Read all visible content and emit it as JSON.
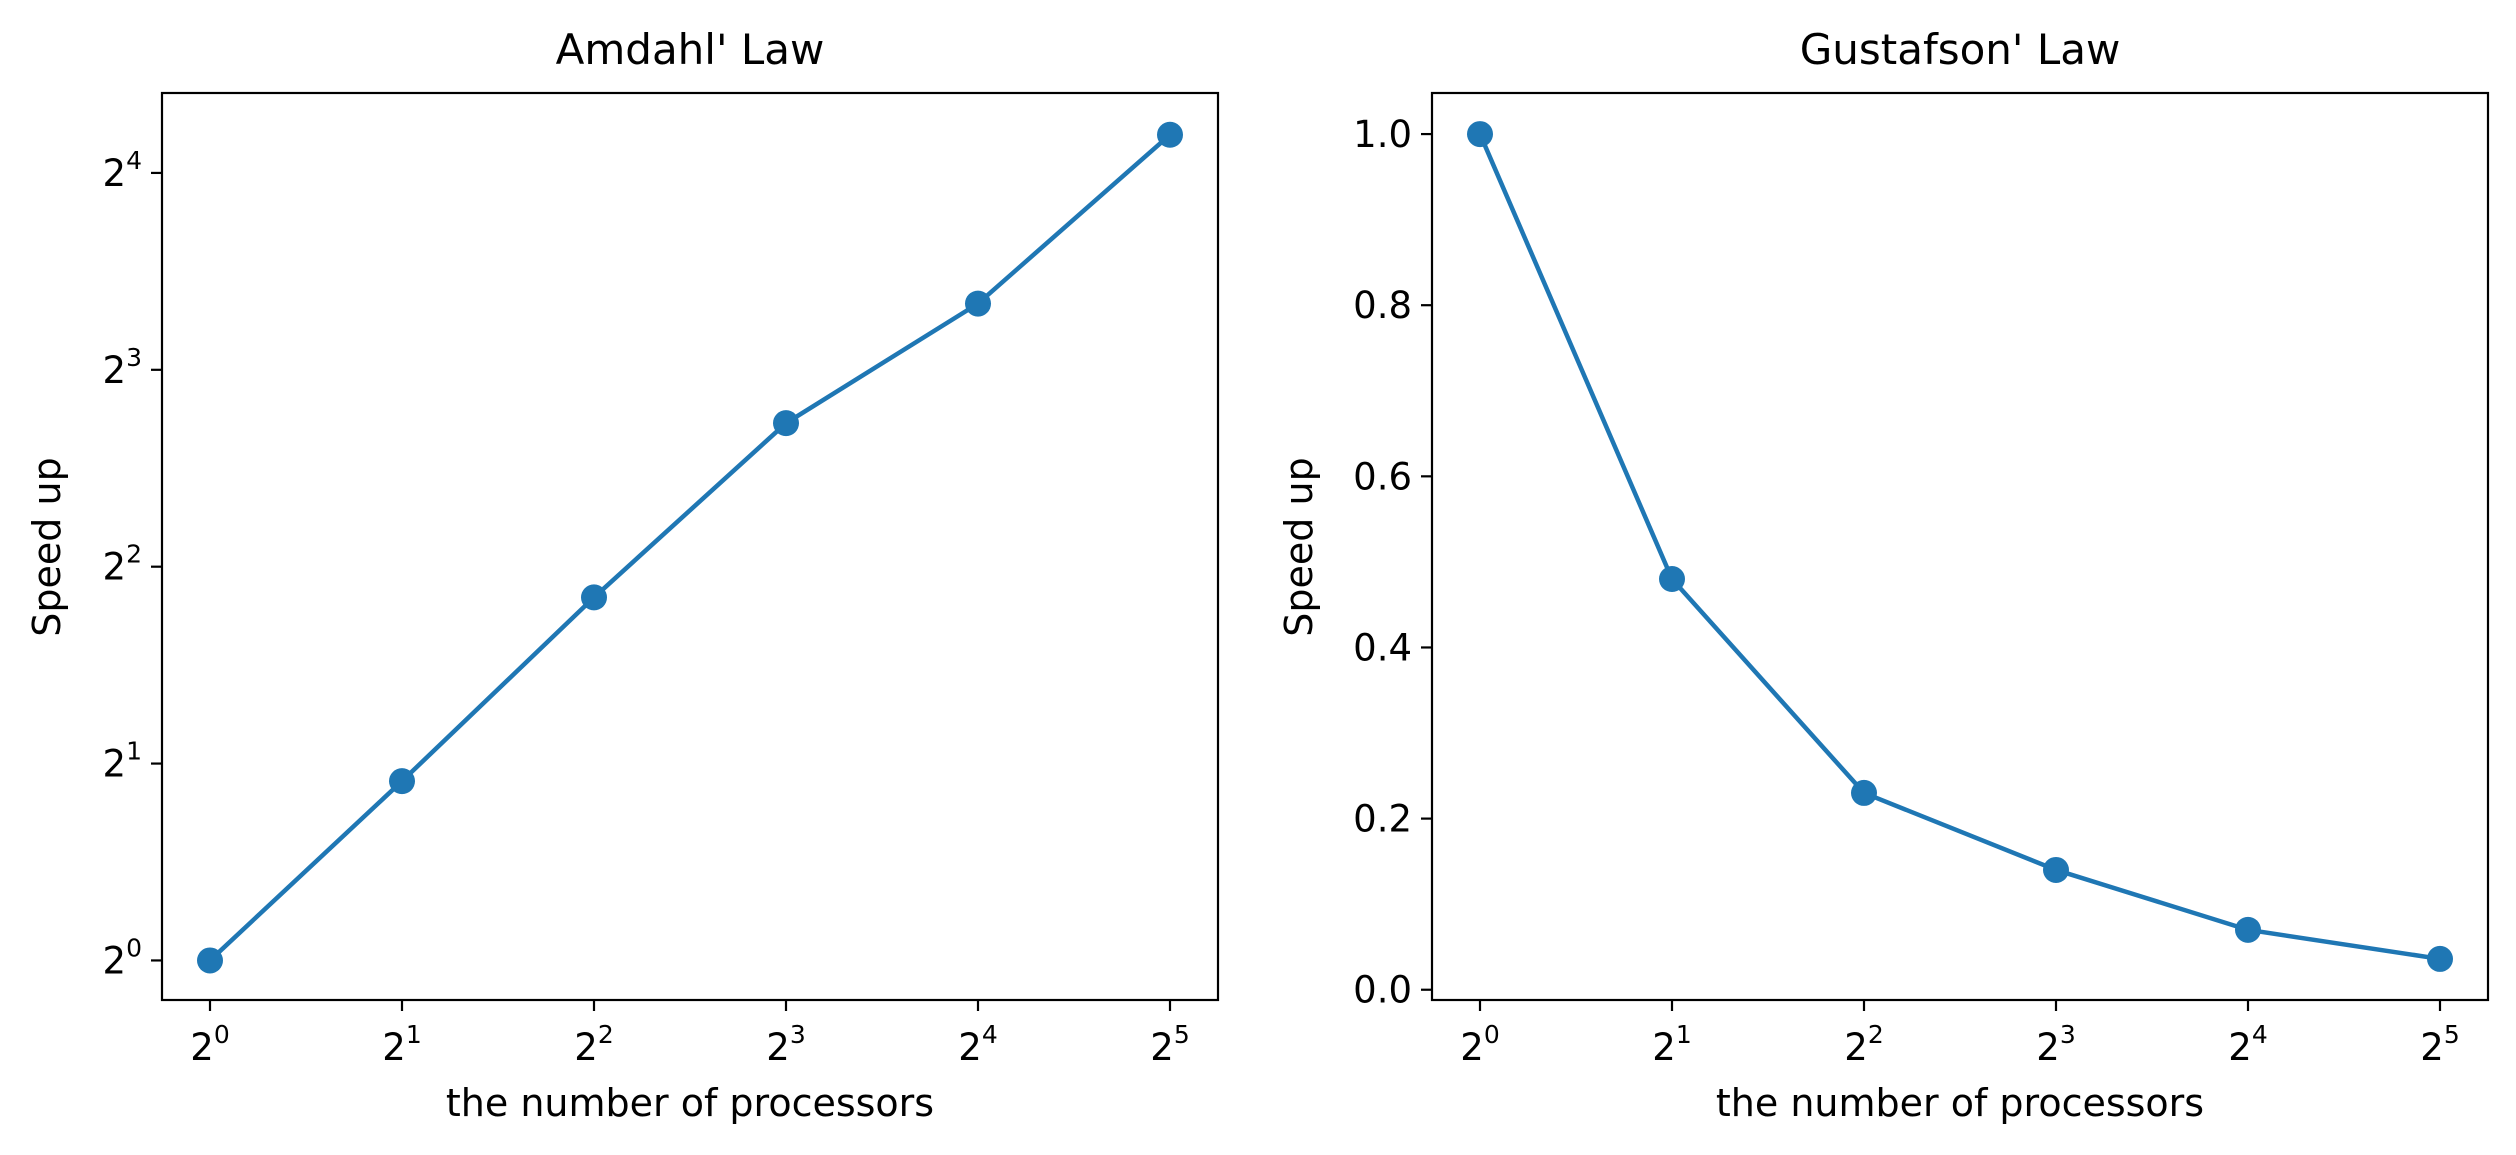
{
  "chart_data": [
    {
      "type": "line",
      "title": "Amdahl' Law",
      "xlabel": "the number of processors",
      "ylabel": "Speed up",
      "xscale": "log2",
      "yscale": "log2",
      "x": [
        1,
        2,
        4,
        8,
        16,
        32
      ],
      "x_tick_labels": [
        {
          "base": "2",
          "exp": "0"
        },
        {
          "base": "2",
          "exp": "1"
        },
        {
          "base": "2",
          "exp": "2"
        },
        {
          "base": "2",
          "exp": "3"
        },
        {
          "base": "2",
          "exp": "4"
        },
        {
          "base": "2",
          "exp": "5"
        }
      ],
      "y_ticks": [
        1,
        2,
        4,
        8,
        16
      ],
      "y_tick_labels": [
        {
          "base": "2",
          "exp": "0"
        },
        {
          "base": "2",
          "exp": "1"
        },
        {
          "base": "2",
          "exp": "2"
        },
        {
          "base": "2",
          "exp": "3"
        },
        {
          "base": "2",
          "exp": "4"
        }
      ],
      "ylim": [
        0.87,
        21.2
      ],
      "series": [
        {
          "values": [
            1.0,
            1.88,
            3.59,
            6.63,
            10.1,
            18.3
          ],
          "color": "#1f77b4",
          "marker": "circle"
        }
      ],
      "grid": false,
      "legend": "none"
    },
    {
      "type": "line",
      "title": "Gustafson' Law",
      "xlabel": "the number of processors",
      "ylabel": "Speed up",
      "xscale": "log2",
      "yscale": "linear",
      "x": [
        1,
        2,
        4,
        8,
        16,
        32
      ],
      "x_tick_labels": [
        {
          "base": "2",
          "exp": "0"
        },
        {
          "base": "2",
          "exp": "1"
        },
        {
          "base": "2",
          "exp": "2"
        },
        {
          "base": "2",
          "exp": "3"
        },
        {
          "base": "2",
          "exp": "4"
        },
        {
          "base": "2",
          "exp": "5"
        }
      ],
      "y_ticks": [
        0.0,
        0.2,
        0.4,
        0.6,
        0.8,
        1.0
      ],
      "y_tick_labels": [
        "0.0",
        "0.2",
        "0.4",
        "0.6",
        "0.8",
        "1.0"
      ],
      "ylim": [
        -0.012,
        1.048
      ],
      "series": [
        {
          "values": [
            1.0,
            0.48,
            0.23,
            0.14,
            0.07,
            0.036
          ],
          "color": "#1f77b4",
          "marker": "circle"
        }
      ],
      "grid": false,
      "legend": "none"
    }
  ]
}
